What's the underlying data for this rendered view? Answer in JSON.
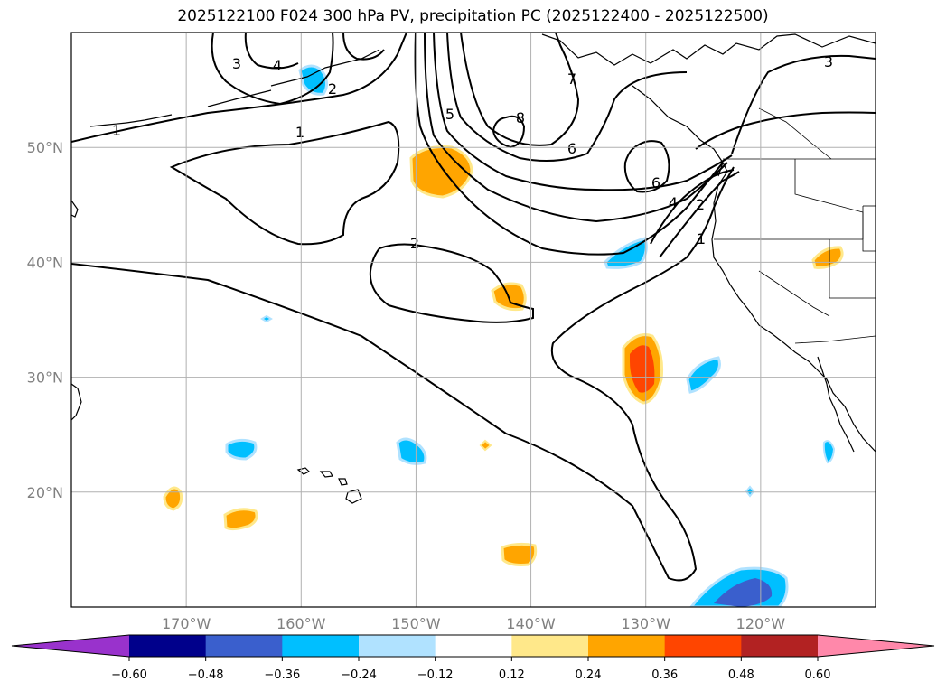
{
  "title": "2025122100 F024 300 hPa PV, precipitation PC (2025122400 - 2025122500)",
  "map": {
    "lon_range": [
      -180,
      -110
    ],
    "lat_range": [
      10,
      60
    ],
    "lat_labels": [
      "20°N",
      "30°N",
      "40°N",
      "50°N"
    ],
    "lat_values": [
      20,
      30,
      40,
      50
    ],
    "lon_labels": [
      "170°W",
      "160°W",
      "150°W",
      "140°W",
      "130°W",
      "120°W"
    ],
    "lon_values": [
      -170,
      -160,
      -150,
      -140,
      -130,
      -120
    ],
    "gridlines": true
  },
  "pv_contour_labels": [
    "1",
    "2",
    "3",
    "4",
    "5",
    "6",
    "7",
    "8"
  ],
  "colorbar": {
    "extend": "both",
    "ticks": [
      "−0.60",
      "−0.48",
      "−0.36",
      "−0.24",
      "−0.12",
      "0.12",
      "0.24",
      "0.36",
      "0.48",
      "0.60"
    ],
    "colors": [
      "#9932cc",
      "#00008b",
      "#3a5fcd",
      "#00bfff",
      "#b0e2ff",
      "#ffffff",
      "#ffe88a",
      "#ffa500",
      "#ff4500",
      "#b22222",
      "#ff88aa"
    ]
  }
}
